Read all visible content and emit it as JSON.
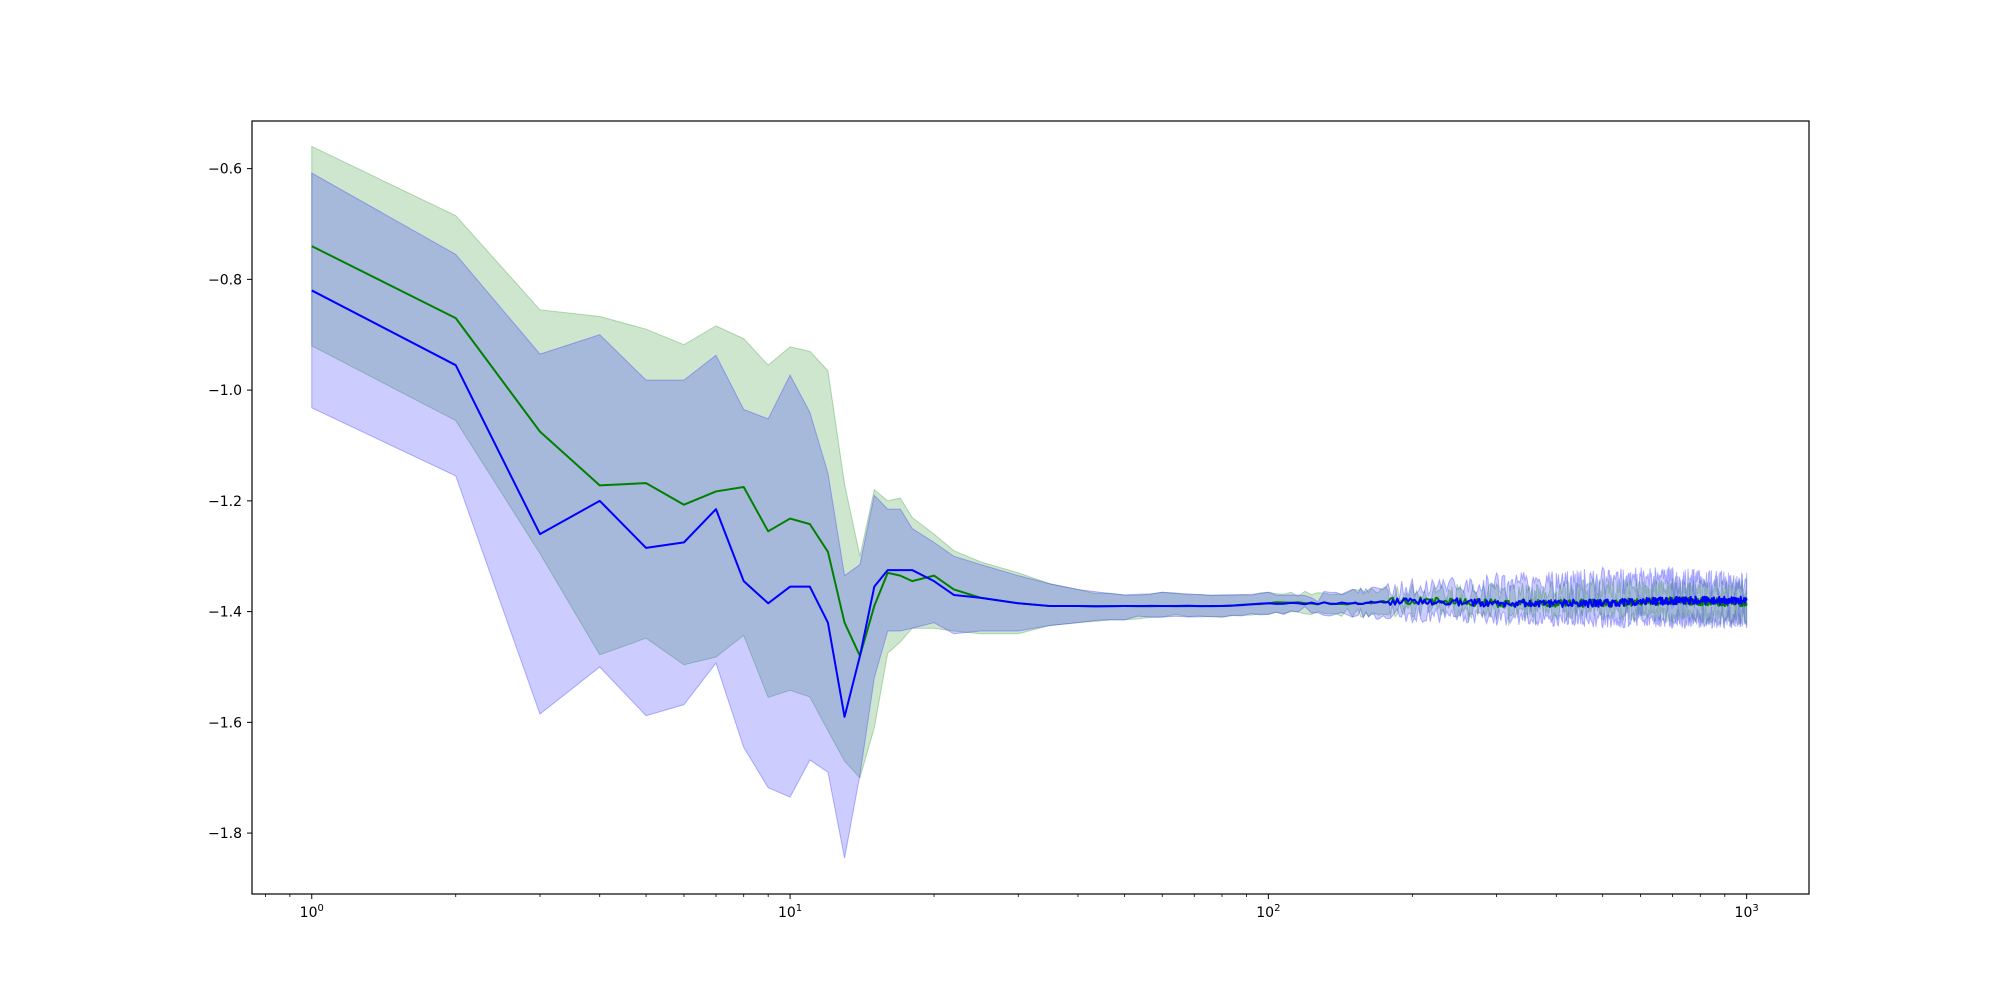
{
  "chart_data": {
    "type": "line",
    "title": "",
    "xlabel": "",
    "ylabel": "",
    "xscale": "log",
    "xlim": [
      0.75,
      1350
    ],
    "ylim": [
      -1.91,
      -0.514
    ],
    "grid": false,
    "legend": "none",
    "yticks": [
      -0.6,
      -0.8,
      -1.0,
      -1.2,
      -1.4,
      -1.6,
      -1.8
    ],
    "ytick_labels": [
      "−0.6",
      "−0.8",
      "−1.0",
      "−1.2",
      "−1.4",
      "−1.6",
      "−1.8"
    ],
    "xticks": [
      1,
      10,
      100,
      1000
    ],
    "xtick_labels": [
      {
        "base": "10",
        "exp": "0"
      },
      {
        "base": "10",
        "exp": "1"
      },
      {
        "base": "10",
        "exp": "2"
      },
      {
        "base": "10",
        "exp": "3"
      }
    ],
    "colors": {
      "green_line": "#008000",
      "green_band": "#3a9a3a",
      "blue_line": "#0000ff",
      "blue_band": "#3333ff",
      "overlap_band": "#4d6fb3"
    },
    "series": [
      {
        "color": "green",
        "x": [
          1,
          2,
          3,
          4,
          5,
          6,
          7,
          8,
          9,
          10,
          11,
          12,
          13,
          14,
          15,
          16,
          17,
          18,
          20,
          22,
          25,
          30,
          35,
          40,
          50,
          60,
          80,
          100,
          150,
          200,
          300,
          500,
          700,
          1000
        ],
        "mean": [
          -0.74,
          -0.87,
          -1.075,
          -1.172,
          -1.168,
          -1.207,
          -1.183,
          -1.175,
          -1.255,
          -1.232,
          -1.242,
          -1.292,
          -1.42,
          -1.48,
          -1.39,
          -1.33,
          -1.335,
          -1.345,
          -1.335,
          -1.36,
          -1.375,
          -1.385,
          -1.39,
          -1.39,
          -1.39,
          -1.39,
          -1.39,
          -1.385,
          -1.385,
          -1.38,
          -1.385,
          -1.385,
          -1.38,
          -1.385
        ],
        "upper": [
          -0.56,
          -0.685,
          -0.855,
          -0.867,
          -0.89,
          -0.918,
          -0.884,
          -0.907,
          -0.955,
          -0.922,
          -0.93,
          -0.965,
          -1.17,
          -1.3,
          -1.18,
          -1.2,
          -1.195,
          -1.23,
          -1.26,
          -1.29,
          -1.31,
          -1.33,
          -1.35,
          -1.36,
          -1.37,
          -1.365,
          -1.37,
          -1.365,
          -1.36,
          -1.35,
          -1.35,
          -1.34,
          -1.34,
          -1.34
        ],
        "lower": [
          -0.92,
          -1.055,
          -1.295,
          -1.478,
          -1.448,
          -1.496,
          -1.482,
          -1.443,
          -1.555,
          -1.542,
          -1.554,
          -1.615,
          -1.67,
          -1.7,
          -1.61,
          -1.475,
          -1.455,
          -1.43,
          -1.43,
          -1.435,
          -1.44,
          -1.44,
          -1.425,
          -1.42,
          -1.415,
          -1.41,
          -1.41,
          -1.405,
          -1.41,
          -1.41,
          -1.415,
          -1.415,
          -1.42,
          -1.425
        ]
      },
      {
        "color": "blue",
        "x": [
          1,
          2,
          3,
          4,
          5,
          6,
          7,
          8,
          9,
          10,
          11,
          12,
          13,
          14,
          15,
          16,
          17,
          18,
          20,
          22,
          25,
          30,
          35,
          40,
          50,
          60,
          80,
          100,
          150,
          200,
          300,
          500,
          700,
          1000
        ],
        "mean": [
          -0.82,
          -0.955,
          -1.26,
          -1.2,
          -1.285,
          -1.275,
          -1.215,
          -1.345,
          -1.385,
          -1.355,
          -1.355,
          -1.42,
          -1.59,
          -1.48,
          -1.355,
          -1.325,
          -1.325,
          -1.325,
          -1.345,
          -1.37,
          -1.375,
          -1.385,
          -1.39,
          -1.39,
          -1.39,
          -1.39,
          -1.39,
          -1.385,
          -1.385,
          -1.38,
          -1.385,
          -1.385,
          -1.38,
          -1.38
        ],
        "upper": [
          -0.608,
          -0.755,
          -0.935,
          -0.9,
          -0.982,
          -0.982,
          -0.937,
          -1.035,
          -1.052,
          -0.973,
          -1.04,
          -1.15,
          -1.335,
          -1.315,
          -1.19,
          -1.215,
          -1.215,
          -1.25,
          -1.275,
          -1.3,
          -1.315,
          -1.335,
          -1.35,
          -1.36,
          -1.37,
          -1.365,
          -1.37,
          -1.365,
          -1.36,
          -1.34,
          -1.33,
          -1.32,
          -1.32,
          -1.33
        ],
        "lower": [
          -1.032,
          -1.155,
          -1.585,
          -1.5,
          -1.588,
          -1.568,
          -1.493,
          -1.645,
          -1.718,
          -1.735,
          -1.668,
          -1.69,
          -1.845,
          -1.695,
          -1.52,
          -1.435,
          -1.435,
          -1.43,
          -1.42,
          -1.44,
          -1.435,
          -1.435,
          -1.425,
          -1.42,
          -1.415,
          -1.41,
          -1.41,
          -1.405,
          -1.41,
          -1.42,
          -1.425,
          -1.43,
          -1.43,
          -1.43
        ]
      }
    ]
  }
}
